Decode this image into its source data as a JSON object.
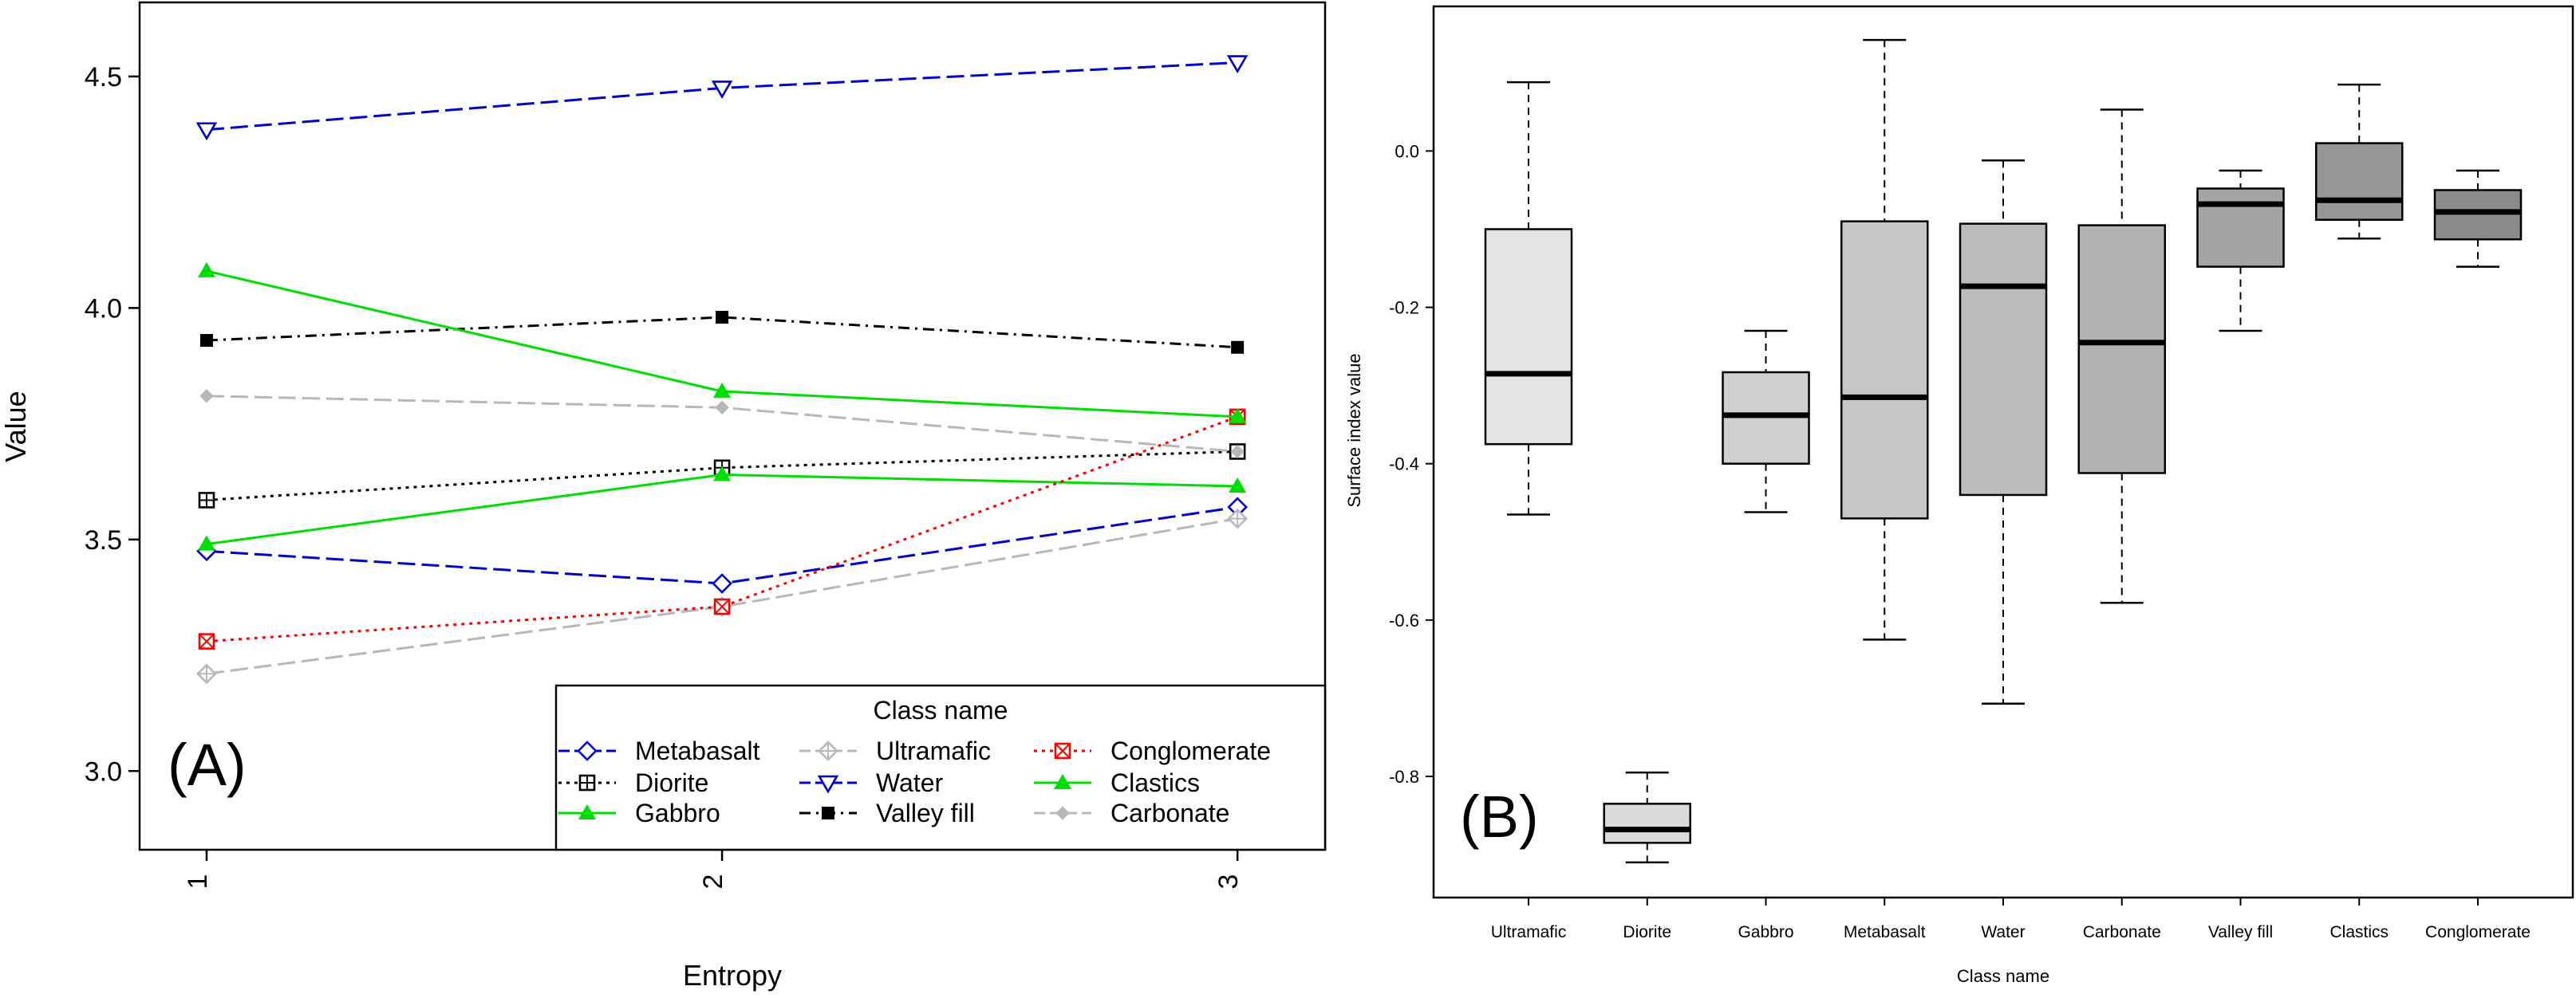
{
  "chart_data": [
    {
      "panel_label": "(A)",
      "type": "line",
      "title": "",
      "xlabel": "Entropy",
      "ylabel": "Value",
      "x": [
        1,
        2,
        3
      ],
      "x_tick_labels": [
        "1",
        "2",
        "3"
      ],
      "y_ticks": [
        3.0,
        3.5,
        4.0,
        4.5
      ],
      "y_tick_labels": [
        "3.0",
        "3.5",
        "4.0",
        "4.5"
      ],
      "xlim": [
        0.87,
        3.17
      ],
      "ylim": [
        2.83,
        4.66
      ],
      "legend_title": "Class name",
      "legend_position": "bottom-right",
      "series": [
        {
          "name": "Metabasalt",
          "values": [
            3.475,
            3.405,
            3.57
          ],
          "color": "#0000cc",
          "dash": "long",
          "marker": "diamond-open"
        },
        {
          "name": "Diorite",
          "values": [
            3.585,
            3.655,
            3.69
          ],
          "color": "#000000",
          "dash": "dotted",
          "marker": "square-plus"
        },
        {
          "name": "Gabbro",
          "values": [
            3.49,
            3.64,
            3.615
          ],
          "color": "#00dd00",
          "dash": "solid",
          "marker": "triangle-filled"
        },
        {
          "name": "Ultramafic",
          "values": [
            3.21,
            3.355,
            3.545
          ],
          "color": "#b8b8b8",
          "dash": "long",
          "marker": "diamond-plus"
        },
        {
          "name": "Water",
          "values": [
            4.385,
            4.475,
            4.53
          ],
          "color": "#0000cc",
          "dash": "long",
          "marker": "triangle-down-open"
        },
        {
          "name": "Valley fill",
          "values": [
            3.93,
            3.98,
            3.915
          ],
          "color": "#000000",
          "dash": "dashdot",
          "marker": "square-filled"
        },
        {
          "name": "Conglomerate",
          "values": [
            3.28,
            3.355,
            3.765
          ],
          "color": "#ff0000",
          "dash": "dotted",
          "marker": "square-x"
        },
        {
          "name": "Clastics",
          "values": [
            4.08,
            3.82,
            3.765
          ],
          "color": "#00dd00",
          "dash": "solid",
          "marker": "triangle-filled"
        },
        {
          "name": "Carbonate",
          "values": [
            3.81,
            3.785,
            3.69
          ],
          "color": "#b8b8b8",
          "dash": "long",
          "marker": "diamond-filled"
        }
      ]
    },
    {
      "panel_label": "(B)",
      "type": "box",
      "title": "",
      "xlabel": "Class name",
      "ylabel": "Surface index value",
      "y_ticks": [
        -0.8,
        -0.6,
        -0.4,
        -0.2,
        0.0
      ],
      "y_tick_labels": [
        "-0.8",
        "-0.6",
        "-0.4",
        "-0.2",
        "0.0"
      ],
      "ylim": [
        -0.955,
        0.185
      ],
      "categories": [
        "Ultramafic",
        "Diorite",
        "Gabbro",
        "Metabasalt",
        "Water",
        "Carbonate",
        "Valley fill",
        "Clastics",
        "Conglomerate"
      ],
      "boxes": [
        {
          "name": "Ultramafic",
          "min": -0.465,
          "q1": -0.375,
          "median": -0.285,
          "q3": -0.1,
          "max": 0.088,
          "fill": "#e4e4e4"
        },
        {
          "name": "Diorite",
          "min": -0.91,
          "q1": -0.885,
          "median": -0.868,
          "q3": -0.835,
          "max": -0.795,
          "fill": "#dadada"
        },
        {
          "name": "Gabbro",
          "min": -0.462,
          "q1": -0.4,
          "median": -0.338,
          "q3": -0.283,
          "max": -0.23,
          "fill": "#d0d0d0"
        },
        {
          "name": "Metabasalt",
          "min": -0.625,
          "q1": -0.47,
          "median": -0.315,
          "q3": -0.09,
          "max": 0.142,
          "fill": "#c6c6c6"
        },
        {
          "name": "Water",
          "min": -0.707,
          "q1": -0.44,
          "median": -0.173,
          "q3": -0.093,
          "max": -0.012,
          "fill": "#bcbcbc"
        },
        {
          "name": "Carbonate",
          "min": -0.578,
          "q1": -0.412,
          "median": -0.245,
          "q3": -0.095,
          "max": 0.053,
          "fill": "#b2b2b2"
        },
        {
          "name": "Valley fill",
          "min": -0.23,
          "q1": -0.148,
          "median": -0.068,
          "q3": -0.048,
          "max": -0.025,
          "fill": "#a4a4a4"
        },
        {
          "name": "Clastics",
          "min": -0.112,
          "q1": -0.088,
          "median": -0.063,
          "q3": 0.01,
          "max": 0.085,
          "fill": "#969696"
        },
        {
          "name": "Conglomerate",
          "min": -0.148,
          "q1": -0.113,
          "median": -0.078,
          "q3": -0.05,
          "max": -0.025,
          "fill": "#8a8a8a"
        }
      ]
    }
  ]
}
